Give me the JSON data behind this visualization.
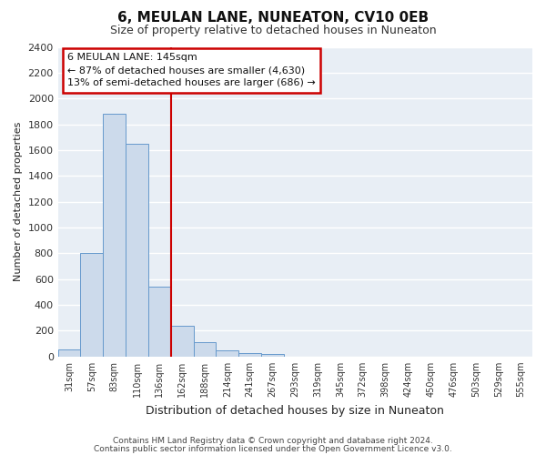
{
  "title": "6, MEULAN LANE, NUNEATON, CV10 0EB",
  "subtitle": "Size of property relative to detached houses in Nuneaton",
  "xlabel": "Distribution of detached houses by size in Nuneaton",
  "ylabel": "Number of detached properties",
  "bar_labels": [
    "31sqm",
    "57sqm",
    "83sqm",
    "110sqm",
    "136sqm",
    "162sqm",
    "188sqm",
    "214sqm",
    "241sqm",
    "267sqm",
    "293sqm",
    "319sqm",
    "345sqm",
    "372sqm",
    "398sqm",
    "424sqm",
    "450sqm",
    "476sqm",
    "503sqm",
    "529sqm",
    "555sqm"
  ],
  "bar_values": [
    55,
    800,
    1880,
    1650,
    540,
    235,
    110,
    50,
    30,
    20,
    0,
    0,
    0,
    0,
    0,
    0,
    0,
    0,
    0,
    0,
    0
  ],
  "bar_color": "#ccdaeb",
  "bar_edge_color": "#6699cc",
  "background_color": "#e8eef5",
  "grid_color": "#ffffff",
  "fig_bg_color": "#ffffff",
  "ylim": [
    0,
    2400
  ],
  "yticks": [
    0,
    200,
    400,
    600,
    800,
    1000,
    1200,
    1400,
    1600,
    1800,
    2000,
    2200,
    2400
  ],
  "vline_color": "#cc0000",
  "annotation_title": "6 MEULAN LANE: 145sqm",
  "annotation_line1": "← 87% of detached houses are smaller (4,630)",
  "annotation_line2": "13% of semi-detached houses are larger (686) →",
  "annotation_box_color": "#ffffff",
  "annotation_box_edge": "#cc0000",
  "footer_line1": "Contains HM Land Registry data © Crown copyright and database right 2024.",
  "footer_line2": "Contains public sector information licensed under the Open Government Licence v3.0."
}
